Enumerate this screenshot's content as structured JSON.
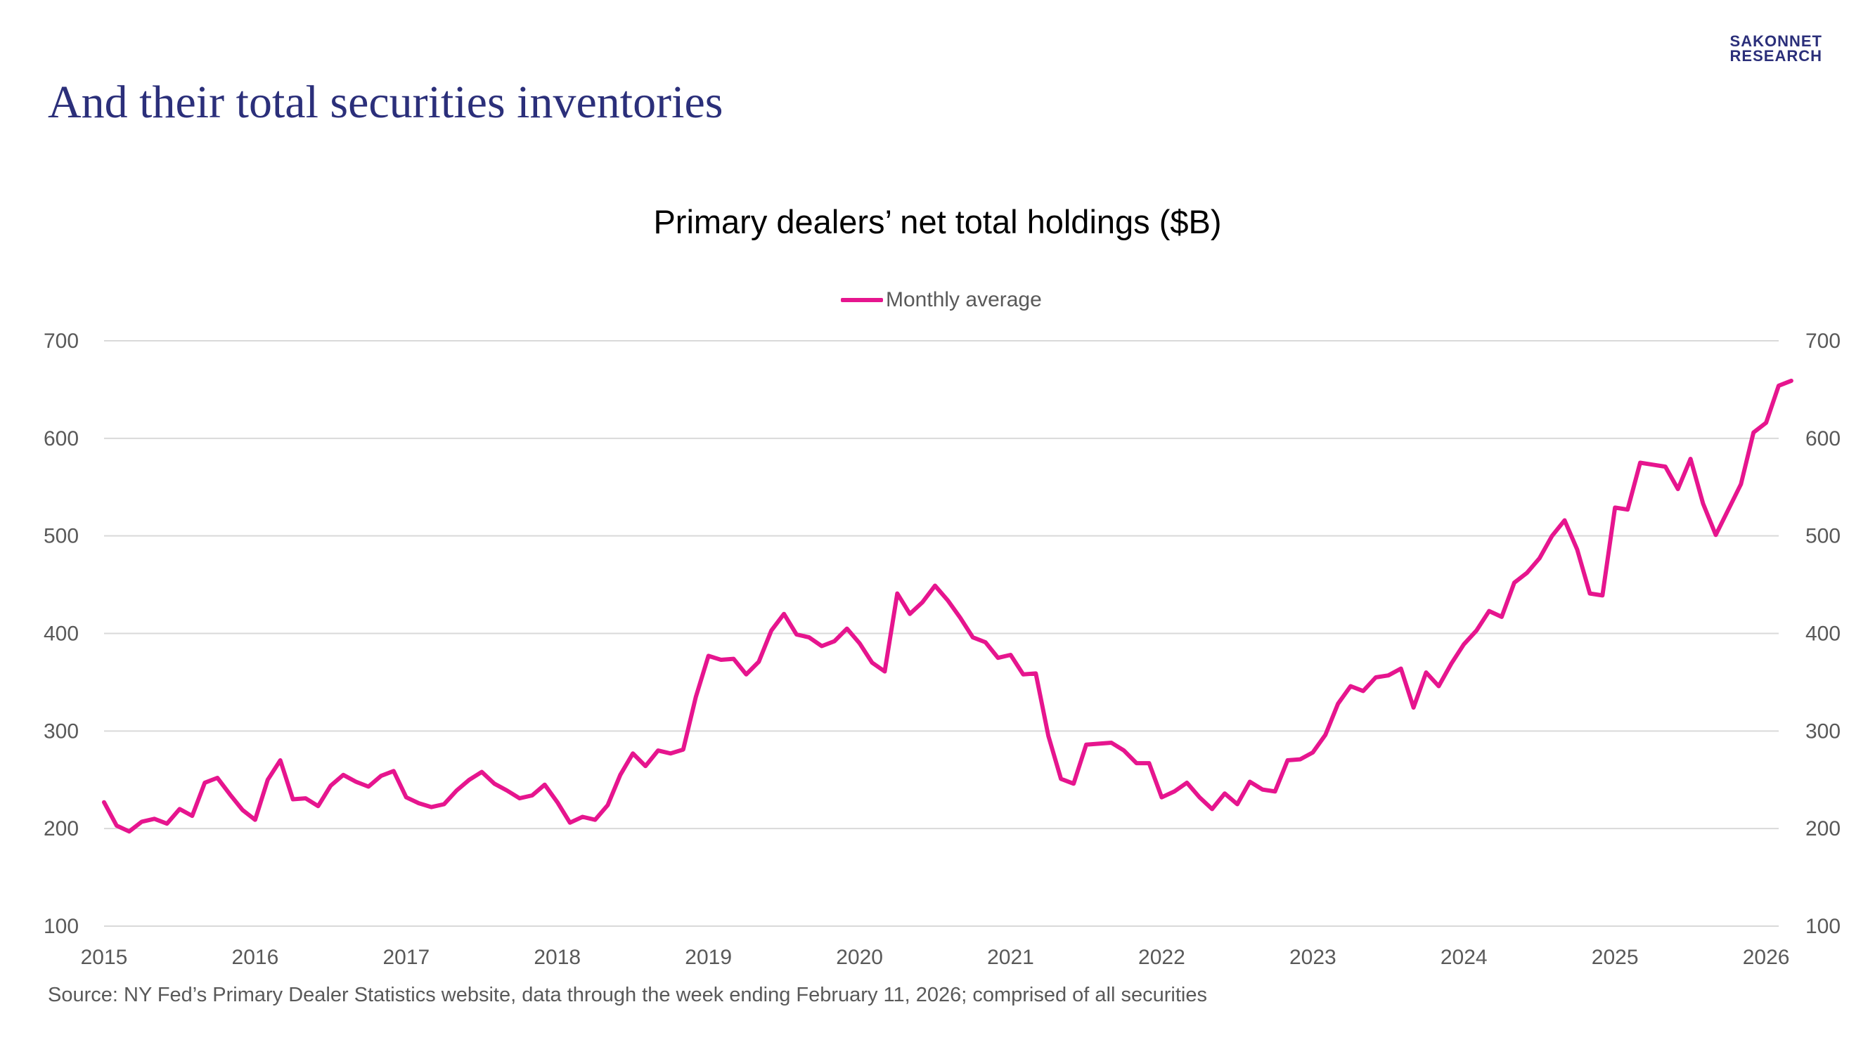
{
  "slide": {
    "title": "And their total securities inventories",
    "logo_line1": "SAKONNET",
    "logo_line2": "RESEARCH",
    "source": "Source: NY Fed’s Primary Dealer Statistics website, data through the week ending February 11, 2026; comprised of all securities"
  },
  "colors": {
    "series": "#e6158e",
    "title": "#2b2f7a",
    "grid": "#d9d9d9",
    "tick": "#595959"
  },
  "chart_data": {
    "type": "line",
    "title": "Primary dealers’ net total holdings ($B)",
    "xlabel": "",
    "ylabel": "",
    "ylim": [
      100,
      700
    ],
    "yticks": [
      100,
      200,
      300,
      400,
      500,
      600,
      700
    ],
    "xticks": [
      "2015",
      "2016",
      "2017",
      "2018",
      "2019",
      "2020",
      "2021",
      "2022",
      "2023",
      "2024",
      "2025",
      "2026"
    ],
    "x_start": "2015-01",
    "x_end": "2026-02",
    "grid": true,
    "dual_y_axis": true,
    "legend_position": "top-center",
    "series": [
      {
        "name": "Monthly average",
        "values": [
          227,
          203,
          197,
          207,
          210,
          205,
          220,
          213,
          247,
          252,
          235,
          219,
          209,
          250,
          270,
          230,
          231,
          223,
          244,
          255,
          248,
          243,
          254,
          259,
          232,
          226,
          222,
          225,
          239,
          250,
          258,
          246,
          239,
          231,
          234,
          245,
          227,
          206,
          212,
          209,
          224,
          255,
          277,
          264,
          280,
          277,
          281,
          335,
          377,
          373,
          374,
          358,
          371,
          403,
          420,
          399,
          396,
          387,
          392,
          405,
          390,
          370,
          361,
          441,
          420,
          432,
          449,
          434,
          416,
          396,
          391,
          375,
          378,
          358,
          359,
          295,
          251,
          246,
          286,
          287,
          288,
          280,
          267,
          267,
          232,
          238,
          247,
          232,
          220,
          236,
          225,
          248,
          240,
          238,
          270,
          271,
          278,
          296,
          328,
          346,
          341,
          355,
          357,
          364,
          324,
          360,
          346,
          369,
          389,
          403,
          423,
          417,
          452,
          462,
          477,
          500,
          516,
          486,
          441,
          439,
          529,
          527,
          575,
          573,
          571,
          548,
          579,
          533,
          501,
          527,
          553,
          606,
          616,
          654,
          659
        ]
      }
    ]
  }
}
